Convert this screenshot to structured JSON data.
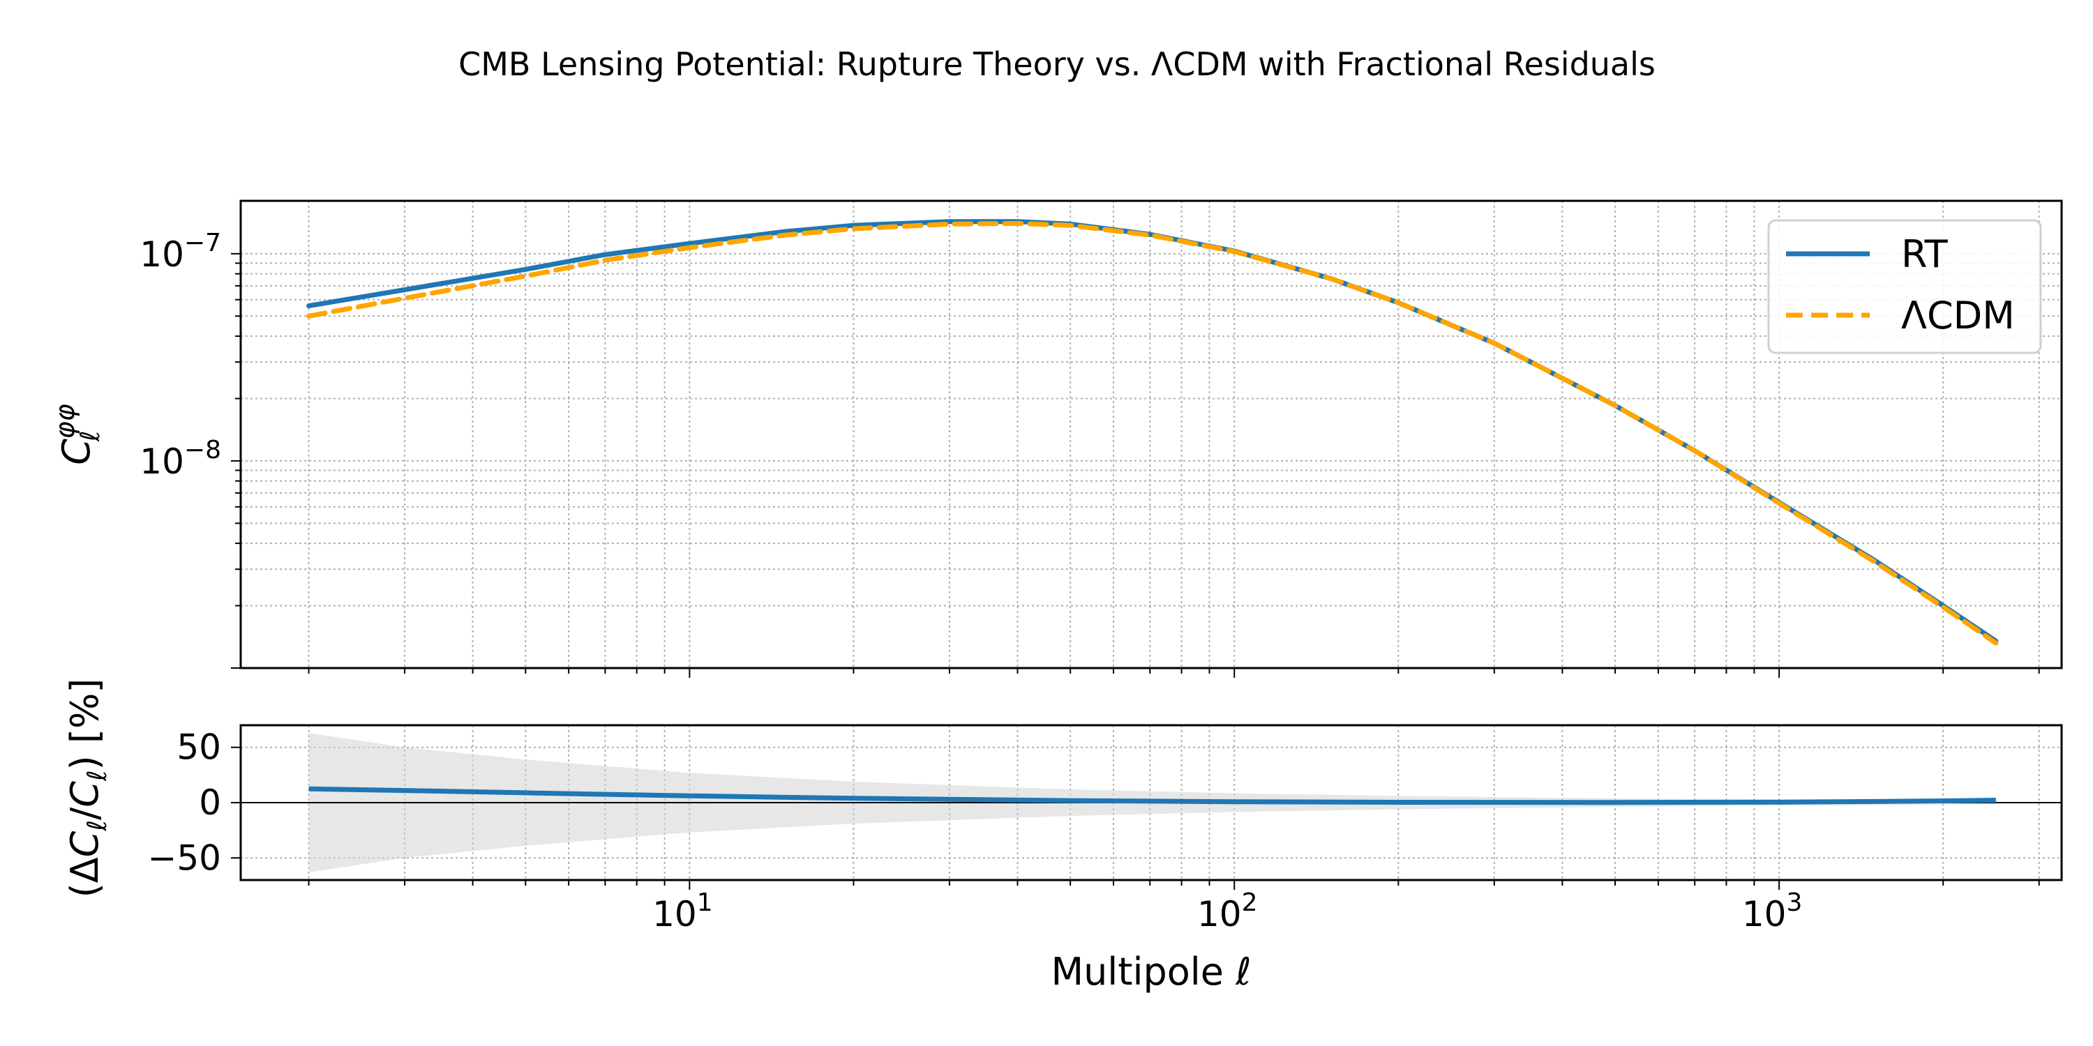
{
  "chart_data": {
    "title": "CMB Lensing Potential: Rupture Theory vs. ΛCDM with Fractional Residuals",
    "top_panel": {
      "type": "line",
      "xscale": "log",
      "yscale": "log",
      "xlim": [
        1.5,
        3300
      ],
      "ylim": [
        1e-09,
        1.8e-07
      ],
      "ylabel": "C_ℓ^{φφ}",
      "yticks": [
        {
          "value": 1e-08,
          "base": "10",
          "exp": "−8"
        },
        {
          "value": 1e-07,
          "base": "10",
          "exp": "−7"
        }
      ],
      "grid": true,
      "legend_position": "top-right",
      "series": [
        {
          "name": "RT",
          "color": "#1f77b4",
          "style": "solid",
          "x": [
            2,
            3,
            5,
            7,
            10,
            15,
            20,
            30,
            40,
            50,
            70,
            100,
            150,
            200,
            300,
            500,
            700,
            1000,
            1500,
            2000,
            2500
          ],
          "y": [
            5.6e-08,
            6.7e-08,
            8.4e-08,
            9.9e-08,
            1.12e-07,
            1.28e-07,
            1.37e-07,
            1.43e-07,
            1.43e-07,
            1.39e-07,
            1.24e-07,
            1.03e-07,
            7.6e-08,
            5.8e-08,
            3.7e-08,
            1.85e-08,
            1.12e-08,
            6.3e-09,
            3.3e-09,
            2e-09,
            1.35e-09
          ]
        },
        {
          "name": "ΛCDM",
          "color": "#ffa500",
          "style": "dashed",
          "x": [
            2,
            3,
            5,
            7,
            10,
            15,
            20,
            30,
            40,
            50,
            70,
            100,
            150,
            200,
            300,
            500,
            700,
            1000,
            1500,
            2000,
            2500
          ],
          "y": [
            5e-08,
            6.1e-08,
            7.8e-08,
            9.3e-08,
            1.07e-07,
            1.23e-07,
            1.32e-07,
            1.39e-07,
            1.4e-07,
            1.37e-07,
            1.23e-07,
            1.025e-07,
            7.6e-08,
            5.8e-08,
            3.7e-08,
            1.85e-08,
            1.12e-08,
            6.25e-09,
            3.25e-09,
            1.97e-09,
            1.32e-09
          ]
        }
      ]
    },
    "bottom_panel": {
      "type": "line",
      "xscale": "log",
      "xlim": [
        1.5,
        3300
      ],
      "ylim": [
        -70,
        70
      ],
      "ylabel": "(ΔC_ℓ/C_ℓ) [%]",
      "xlabel": "Multipole ℓ",
      "yticks": [
        {
          "value": 50,
          "label": "50"
        },
        {
          "value": 0,
          "label": "0"
        },
        {
          "value": -50,
          "label": "−50"
        }
      ],
      "xticks": [
        {
          "value": 10,
          "base": "10",
          "exp": "1"
        },
        {
          "value": 100,
          "base": "10",
          "exp": "2"
        },
        {
          "value": 1000,
          "base": "10",
          "exp": "3"
        }
      ],
      "grid": true,
      "zero_line": true,
      "band": {
        "color": "#d3d3d3",
        "x": [
          2,
          3,
          5,
          10,
          20,
          50,
          100,
          200,
          500,
          1000,
          2000,
          2500
        ],
        "upper": [
          63,
          50,
          39,
          27,
          19,
          12,
          8.5,
          6,
          3.8,
          2.7,
          1.9,
          1.7
        ],
        "lower": [
          -63,
          -50,
          -39,
          -27,
          -19,
          -12,
          -8.5,
          -6,
          -3.8,
          -2.7,
          -1.9,
          -1.7
        ]
      },
      "series": [
        {
          "name": "",
          "color": "#1f77b4",
          "x": [
            2,
            3,
            5,
            7,
            10,
            15,
            20,
            30,
            50,
            100,
            200,
            500,
            1000,
            1500,
            2000,
            2500
          ],
          "y": [
            12.5,
            11,
            8.9,
            7.5,
            6.2,
            4.8,
            4.0,
            3.0,
            1.8,
            0.8,
            0.3,
            0.1,
            0.5,
            1.0,
            1.6,
            2.2
          ]
        }
      ]
    }
  }
}
